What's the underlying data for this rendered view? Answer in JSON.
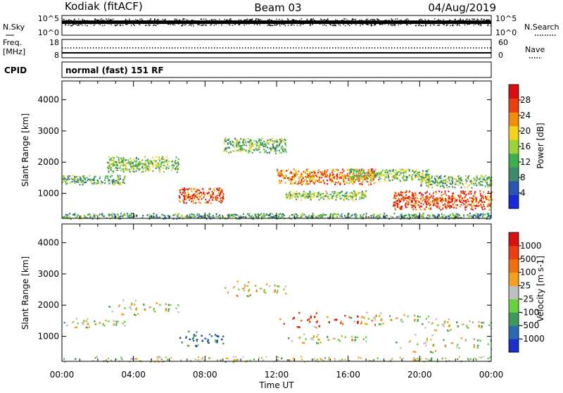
{
  "header": {
    "station": "Kodiak (fitACF)",
    "beam": "Beam 03",
    "date": "04/Aug/2019"
  },
  "noise_panel": {
    "left_label": "N.Sky",
    "right_label": "N.Search",
    "left_ticks": [
      "10^5",
      "10^0"
    ],
    "right_ticks": [
      "10^5",
      "10^0"
    ]
  },
  "freq_panel": {
    "left_label_line1": "Freq.",
    "left_label_line2": "[MHz]",
    "right_label": "Nave",
    "left_ticks": [
      "18",
      "8"
    ],
    "right_ticks": [
      "60",
      "0"
    ]
  },
  "cpid": {
    "label": "CPID",
    "value": "normal (fast) 151 RF"
  },
  "colors": {
    "power_scale": [
      "#1a2ad8",
      "#2a55b0",
      "#3e8a6a",
      "#3cae4a",
      "#9cd23a",
      "#f4d21a",
      "#f08c10",
      "#e84010",
      "#d81010"
    ],
    "velocity_scale": [
      "#1a30c8",
      "#2a6ab0",
      "#3e9a5a",
      "#6ad040",
      "#c0c0c0",
      "#f4a020",
      "#f07010",
      "#e84010",
      "#d81010"
    ]
  },
  "chart_data": [
    {
      "type": "heatmap",
      "name": "power-panel",
      "xlabel": "",
      "ylabel": "Slant Range [km]",
      "x_ticks": [
        "00:00",
        "04:00",
        "08:00",
        "12:00",
        "16:00",
        "20:00",
        "00:00"
      ],
      "xlim_hours": [
        0,
        24
      ],
      "ylim": [
        200,
        4600
      ],
      "y_ticks": [
        1000,
        2000,
        3000,
        4000
      ],
      "colorbar": {
        "label": "Power [dB]",
        "min": 0,
        "max": 32,
        "ticks": [
          4,
          8,
          12,
          16,
          20,
          24,
          28
        ]
      },
      "echo_regions": [
        {
          "start_h": 0.0,
          "end_h": 24.0,
          "r_min": 200,
          "r_max": 380,
          "level": 0.35
        },
        {
          "start_h": 0.0,
          "end_h": 3.5,
          "r_min": 1300,
          "r_max": 1600,
          "level": 0.4
        },
        {
          "start_h": 2.5,
          "end_h": 6.5,
          "r_min": 1700,
          "r_max": 2200,
          "level": 0.45
        },
        {
          "start_h": 6.5,
          "end_h": 9.0,
          "r_min": 700,
          "r_max": 1200,
          "level": 0.85
        },
        {
          "start_h": 9.0,
          "end_h": 12.5,
          "r_min": 2300,
          "r_max": 2800,
          "level": 0.4
        },
        {
          "start_h": 12.0,
          "end_h": 17.5,
          "r_min": 1300,
          "r_max": 1800,
          "level": 0.75
        },
        {
          "start_h": 12.5,
          "end_h": 17.0,
          "r_min": 800,
          "r_max": 1100,
          "level": 0.45
        },
        {
          "start_h": 16.0,
          "end_h": 20.5,
          "r_min": 1400,
          "r_max": 1800,
          "level": 0.45
        },
        {
          "start_h": 18.5,
          "end_h": 24.0,
          "r_min": 500,
          "r_max": 1100,
          "level": 0.85
        },
        {
          "start_h": 20.0,
          "end_h": 24.0,
          "r_min": 1200,
          "r_max": 1600,
          "level": 0.4
        }
      ]
    },
    {
      "type": "heatmap",
      "name": "velocity-panel",
      "xlabel": "Time UT",
      "ylabel": "Slant Range [km]",
      "x_ticks": [
        "00:00",
        "04:00",
        "08:00",
        "12:00",
        "16:00",
        "20:00",
        "00:00"
      ],
      "xlim_hours": [
        0,
        24
      ],
      "ylim": [
        200,
        4600
      ],
      "y_ticks": [
        1000,
        2000,
        3000,
        4000
      ],
      "colorbar": {
        "label": "Velocity [m s-1]",
        "ticks": [
          "1000",
          "500",
          "100",
          "25",
          "-25",
          "-100",
          "-500",
          "-1000"
        ]
      },
      "echo_regions": [
        {
          "start_h": 0.0,
          "end_h": 24.0,
          "r_min": 200,
          "r_max": 380,
          "level": 0.45
        },
        {
          "start_h": 0.0,
          "end_h": 3.5,
          "r_min": 1300,
          "r_max": 1600,
          "level": 0.45
        },
        {
          "start_h": 2.5,
          "end_h": 6.5,
          "r_min": 1700,
          "r_max": 2200,
          "level": 0.45
        },
        {
          "start_h": 6.5,
          "end_h": 9.0,
          "r_min": 700,
          "r_max": 1200,
          "level": 0.15
        },
        {
          "start_h": 9.0,
          "end_h": 12.5,
          "r_min": 2300,
          "r_max": 2800,
          "level": 0.5
        },
        {
          "start_h": 12.0,
          "end_h": 17.5,
          "r_min": 1300,
          "r_max": 1800,
          "level": 0.75
        },
        {
          "start_h": 12.5,
          "end_h": 17.0,
          "r_min": 800,
          "r_max": 1100,
          "level": 0.45
        },
        {
          "start_h": 16.0,
          "end_h": 20.5,
          "r_min": 1400,
          "r_max": 1800,
          "level": 0.45
        },
        {
          "start_h": 18.5,
          "end_h": 24.0,
          "r_min": 500,
          "r_max": 1100,
          "level": 0.45
        },
        {
          "start_h": 20.0,
          "end_h": 24.0,
          "r_min": 1200,
          "r_max": 1600,
          "level": 0.45
        }
      ]
    }
  ]
}
